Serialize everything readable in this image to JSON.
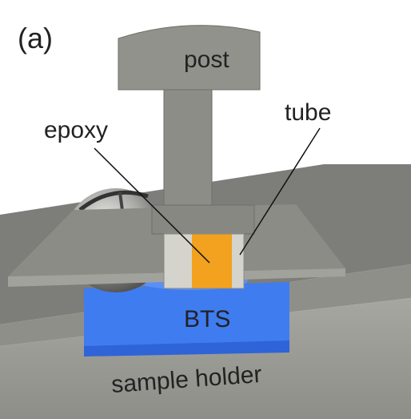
{
  "panel_label": "(a)",
  "labels": {
    "post": "post",
    "epoxy": "epoxy",
    "tube": "tube",
    "bts": "BTS",
    "sample_holder": "sample holder"
  }
}
